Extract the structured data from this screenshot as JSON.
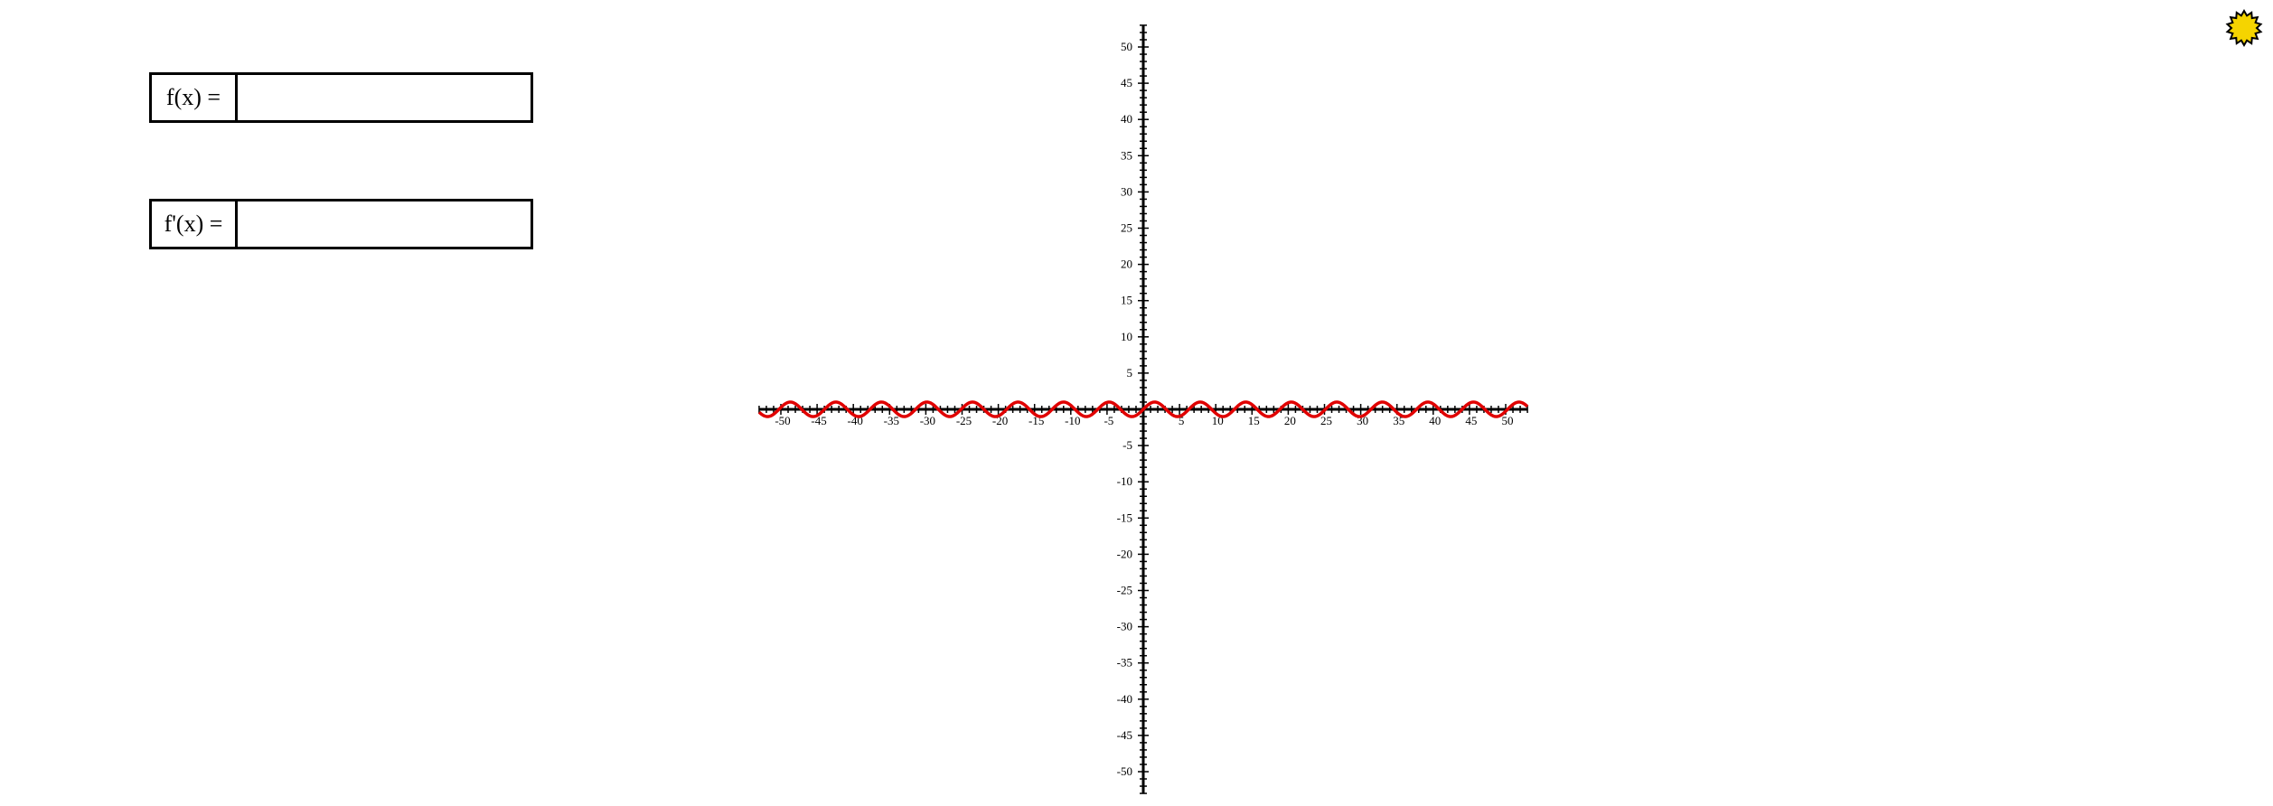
{
  "inputs": {
    "f_label": "f(x) =",
    "f_value": "",
    "df_label": "f'(x) =",
    "df_value": ""
  },
  "theme_toggle": {
    "icon": "sun-icon",
    "color": "#f5d400"
  },
  "chart_data": {
    "type": "line",
    "title": "",
    "xlabel": "",
    "ylabel": "",
    "xlim": [
      -53,
      53
    ],
    "ylim": [
      -53,
      53
    ],
    "x_ticks_labeled": [
      -50,
      -45,
      -40,
      -35,
      -30,
      -25,
      -20,
      -15,
      -10,
      -5,
      5,
      10,
      15,
      20,
      25,
      30,
      35,
      40,
      45,
      50
    ],
    "y_ticks_labeled": [
      -50,
      -45,
      -40,
      -35,
      -30,
      -25,
      -20,
      -15,
      -10,
      -5,
      5,
      10,
      15,
      20,
      25,
      30,
      35,
      40,
      45,
      50
    ],
    "x_tick_labels": [
      "-50",
      "-45",
      "-40",
      "-35",
      "-30",
      "-25",
      "-20",
      "-15",
      "-10",
      "-5",
      "5",
      "10",
      "15",
      "20",
      "25",
      "30",
      "35",
      "40",
      "45",
      "50"
    ],
    "y_tick_labels": [
      "-50",
      "-45",
      "-40",
      "-35",
      "-30",
      "-25",
      "-20",
      "-15",
      "-10",
      "-5",
      "5",
      "10",
      "15",
      "20",
      "25",
      "30",
      "35",
      "40",
      "45",
      "50"
    ],
    "minor_tick_step": 1,
    "series": [
      {
        "function": "sin(x)",
        "color": "#e00000",
        "x_range": [
          -53,
          53
        ],
        "amplitude": 1,
        "period": 6.283
      }
    ],
    "grid": false
  }
}
